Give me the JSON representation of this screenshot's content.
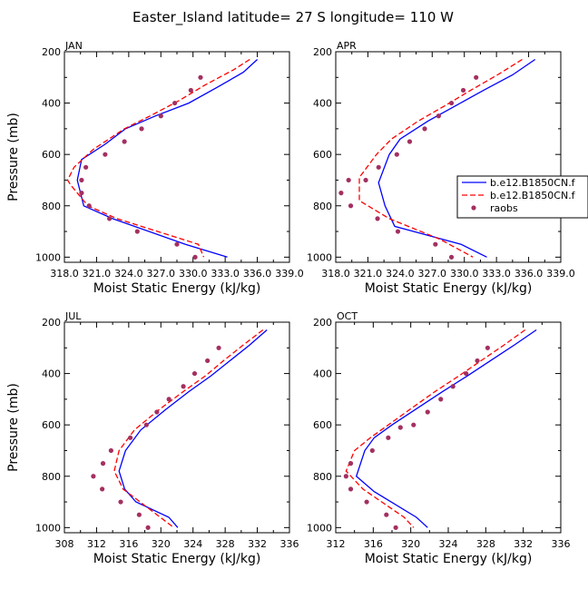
{
  "figure": {
    "title": "Easter_Island  latitude= 27 S longitude= 110 W"
  },
  "legend": {
    "entries": [
      "b.e12.B1850CN.f",
      "b.e12.B1850CN.f",
      "raobs"
    ]
  },
  "colors": {
    "model1": "#0000ff",
    "model2": "#ff0000",
    "raobs": "#a33060",
    "axis": "#000000"
  },
  "chart_data": [
    {
      "type": "line",
      "panel": "JAN",
      "xlabel": "Moist Static Energy (kJ/kg)",
      "ylabel": "Pressure (mb)",
      "xlim": [
        318.0,
        339.0
      ],
      "ylim": [
        1020,
        200
      ],
      "xticks": [
        318.0,
        321.0,
        324.0,
        327.0,
        330.0,
        333.0,
        336.0,
        339.0
      ],
      "xtick_labels": [
        "318.0",
        "321.0",
        "324.0",
        "327.0",
        "330.0",
        "333.0",
        "336.0",
        "339.0"
      ],
      "yticks": [
        200,
        400,
        600,
        800,
        1000
      ],
      "series": [
        {
          "name": "b.e12.B1850CN.f",
          "style": "solid",
          "color": "#0000ff",
          "x": [
            336.0,
            334.7,
            332.2,
            329.6,
            326.5,
            323.7,
            321.8,
            319.6,
            319.2,
            319.8,
            322.5,
            329.3,
            333.2
          ],
          "y": [
            230,
            280,
            340,
            400,
            450,
            500,
            560,
            620,
            700,
            800,
            850,
            950,
            1000
          ]
        },
        {
          "name": "b.e12.B1850CN.f",
          "style": "dashed",
          "color": "#ff0000",
          "x": [
            335.3,
            333.8,
            331.1,
            328.7,
            326.0,
            323.6,
            320.7,
            318.9,
            318.3,
            318.6,
            320.2,
            322.9,
            330.5,
            331.0
          ],
          "y": [
            230,
            270,
            330,
            390,
            450,
            500,
            580,
            650,
            700,
            720,
            800,
            850,
            950,
            1000
          ]
        },
        {
          "name": "raobs",
          "style": "markers",
          "color": "#a33060",
          "x": [
            330.7,
            329.8,
            328.3,
            327.0,
            325.2,
            323.6,
            321.8,
            320.0,
            319.6,
            319.6,
            320.3,
            322.2,
            324.8,
            328.5,
            330.2
          ],
          "y": [
            300,
            350,
            400,
            450,
            500,
            550,
            600,
            650,
            700,
            750,
            800,
            850,
            900,
            950,
            1000
          ]
        }
      ]
    },
    {
      "type": "line",
      "panel": "APR",
      "xlabel": "Moist Static Energy (kJ/kg)",
      "ylabel": "",
      "xlim": [
        318.0,
        339.0
      ],
      "ylim": [
        1020,
        200
      ],
      "xticks": [
        318.0,
        321.0,
        324.0,
        327.0,
        330.0,
        333.0,
        336.0,
        339.0
      ],
      "xtick_labels": [
        "318.0",
        "321.0",
        "324.0",
        "327.0",
        "330.0",
        "333.0",
        "336.0",
        "339.0"
      ],
      "yticks": [
        200,
        400,
        600,
        800,
        1000
      ],
      "series": [
        {
          "name": "b.e12.B1850CN.f",
          "style": "solid",
          "color": "#0000ff",
          "x": [
            336.6,
            334.5,
            331.8,
            329.2,
            326.6,
            324.0,
            323.0,
            322.0,
            322.6,
            323.5,
            329.7,
            332.1
          ],
          "y": [
            230,
            290,
            350,
            410,
            470,
            540,
            600,
            710,
            800,
            880,
            950,
            1000
          ]
        },
        {
          "name": "b.e12.B1850CN.f",
          "style": "dashed",
          "color": "#ff0000",
          "x": [
            335.4,
            333.1,
            330.6,
            328.2,
            325.7,
            323.2,
            321.8,
            320.2,
            320.2,
            323.0,
            327.7,
            330.8
          ],
          "y": [
            230,
            290,
            350,
            410,
            470,
            540,
            600,
            690,
            780,
            850,
            930,
            1000
          ]
        },
        {
          "name": "raobs",
          "style": "markers",
          "color": "#a33060",
          "x": [
            331.1,
            329.9,
            328.8,
            327.6,
            326.3,
            324.9,
            323.7,
            322.0,
            320.8,
            319.2,
            318.5,
            319.4,
            321.9,
            323.8,
            327.3,
            328.8
          ],
          "y": [
            300,
            350,
            400,
            450,
            500,
            550,
            600,
            650,
            700,
            700,
            750,
            800,
            850,
            900,
            950,
            1000
          ]
        }
      ]
    },
    {
      "type": "line",
      "panel": "JUL",
      "xlabel": "Moist Static Energy (kJ/kg)",
      "ylabel": "Pressure (mb)",
      "xlim": [
        308,
        336
      ],
      "ylim": [
        1020,
        200
      ],
      "xticks": [
        308,
        312,
        316,
        320,
        324,
        328,
        332,
        336
      ],
      "xtick_labels": [
        "308",
        "312",
        "316",
        "320",
        "324",
        "328",
        "332",
        "336"
      ],
      "yticks": [
        200,
        400,
        600,
        800,
        1000
      ],
      "series": [
        {
          "name": "b.e12.B1850CN.f",
          "style": "solid",
          "color": "#0000ff",
          "x": [
            333.2,
            331.0,
            328.6,
            326.2,
            323.5,
            320.6,
            317.5,
            315.6,
            314.8,
            315.5,
            316.9,
            321.0,
            322.1
          ],
          "y": [
            230,
            290,
            350,
            410,
            470,
            540,
            620,
            700,
            780,
            850,
            900,
            960,
            1000
          ]
        },
        {
          "name": "b.e12.B1850CN.f",
          "style": "dashed",
          "color": "#ff0000",
          "x": [
            332.7,
            330.2,
            327.8,
            325.5,
            322.8,
            319.8,
            316.7,
            314.8,
            314.2,
            315.3,
            317.4,
            321.6
          ],
          "y": [
            230,
            290,
            350,
            410,
            470,
            540,
            620,
            700,
            780,
            850,
            900,
            1000
          ]
        },
        {
          "name": "raobs",
          "style": "markers",
          "color": "#a33060",
          "x": [
            327.2,
            325.8,
            324.2,
            322.8,
            321.0,
            319.5,
            318.2,
            316.2,
            313.8,
            312.8,
            311.6,
            312.7,
            315.0,
            317.3,
            318.4
          ],
          "y": [
            300,
            350,
            400,
            450,
            500,
            550,
            600,
            650,
            700,
            750,
            800,
            850,
            900,
            950,
            1000
          ]
        }
      ]
    },
    {
      "type": "line",
      "panel": "OCT",
      "xlabel": "Moist Static Energy (kJ/kg)",
      "ylabel": "",
      "xlim": [
        312,
        336
      ],
      "ylim": [
        1020,
        200
      ],
      "xticks": [
        312,
        316,
        320,
        324,
        328,
        332,
        336
      ],
      "xtick_labels": [
        "312",
        "316",
        "320",
        "324",
        "328",
        "332",
        "336"
      ],
      "yticks": [
        200,
        400,
        600,
        800,
        1000
      ],
      "series": [
        {
          "name": "b.e12.B1850CN.f",
          "style": "solid",
          "color": "#0000ff",
          "x": [
            333.4,
            331.0,
            328.5,
            326.0,
            323.4,
            320.5,
            318.0,
            316.1,
            315.1,
            314.2,
            316.1,
            320.6,
            321.8
          ],
          "y": [
            230,
            290,
            350,
            410,
            470,
            540,
            600,
            650,
            700,
            800,
            860,
            960,
            1000
          ]
        },
        {
          "name": "b.e12.B1850CN.f",
          "style": "dashed",
          "color": "#ff0000",
          "x": [
            332.2,
            329.9,
            327.5,
            325.1,
            322.6,
            319.9,
            317.6,
            315.7,
            314.0,
            313.1,
            314.9,
            319.3,
            320.3
          ],
          "y": [
            230,
            290,
            350,
            410,
            470,
            540,
            600,
            650,
            700,
            780,
            850,
            960,
            1000
          ]
        },
        {
          "name": "raobs",
          "style": "markers",
          "color": "#a33060",
          "x": [
            328.2,
            327.1,
            325.9,
            324.5,
            323.2,
            321.8,
            320.3,
            318.9,
            317.6,
            315.9,
            313.6,
            313.1,
            313.6,
            315.3,
            317.4,
            318.4
          ],
          "y": [
            300,
            350,
            400,
            450,
            500,
            550,
            600,
            610,
            650,
            700,
            750,
            800,
            850,
            900,
            950,
            1000
          ]
        }
      ]
    }
  ]
}
